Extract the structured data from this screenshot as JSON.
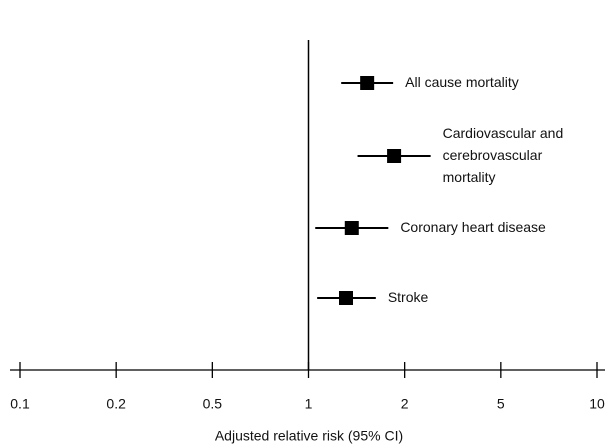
{
  "chart_data": {
    "type": "forest",
    "categories": [
      [
        "All cause mortality"
      ],
      [
        "Cardiovascular and",
        "cerebrovascular",
        "mortality"
      ],
      [
        "Coronary heart disease"
      ],
      [
        "Stroke"
      ]
    ],
    "values": [
      1.61,
      1.89,
      1.45,
      1.39
    ],
    "ci_low": [
      1.34,
      1.51,
      1.07,
      1.09
    ],
    "ci_high": [
      1.88,
      2.81,
      1.83,
      1.7
    ],
    "color": "#000000",
    "xlim": [
      0.1,
      10
    ],
    "xticks": [
      0.1,
      0.2,
      0.5,
      1,
      2,
      5,
      10
    ],
    "reference_line": 1,
    "xlabel": "Adjusted relative risk (95% CI)"
  }
}
